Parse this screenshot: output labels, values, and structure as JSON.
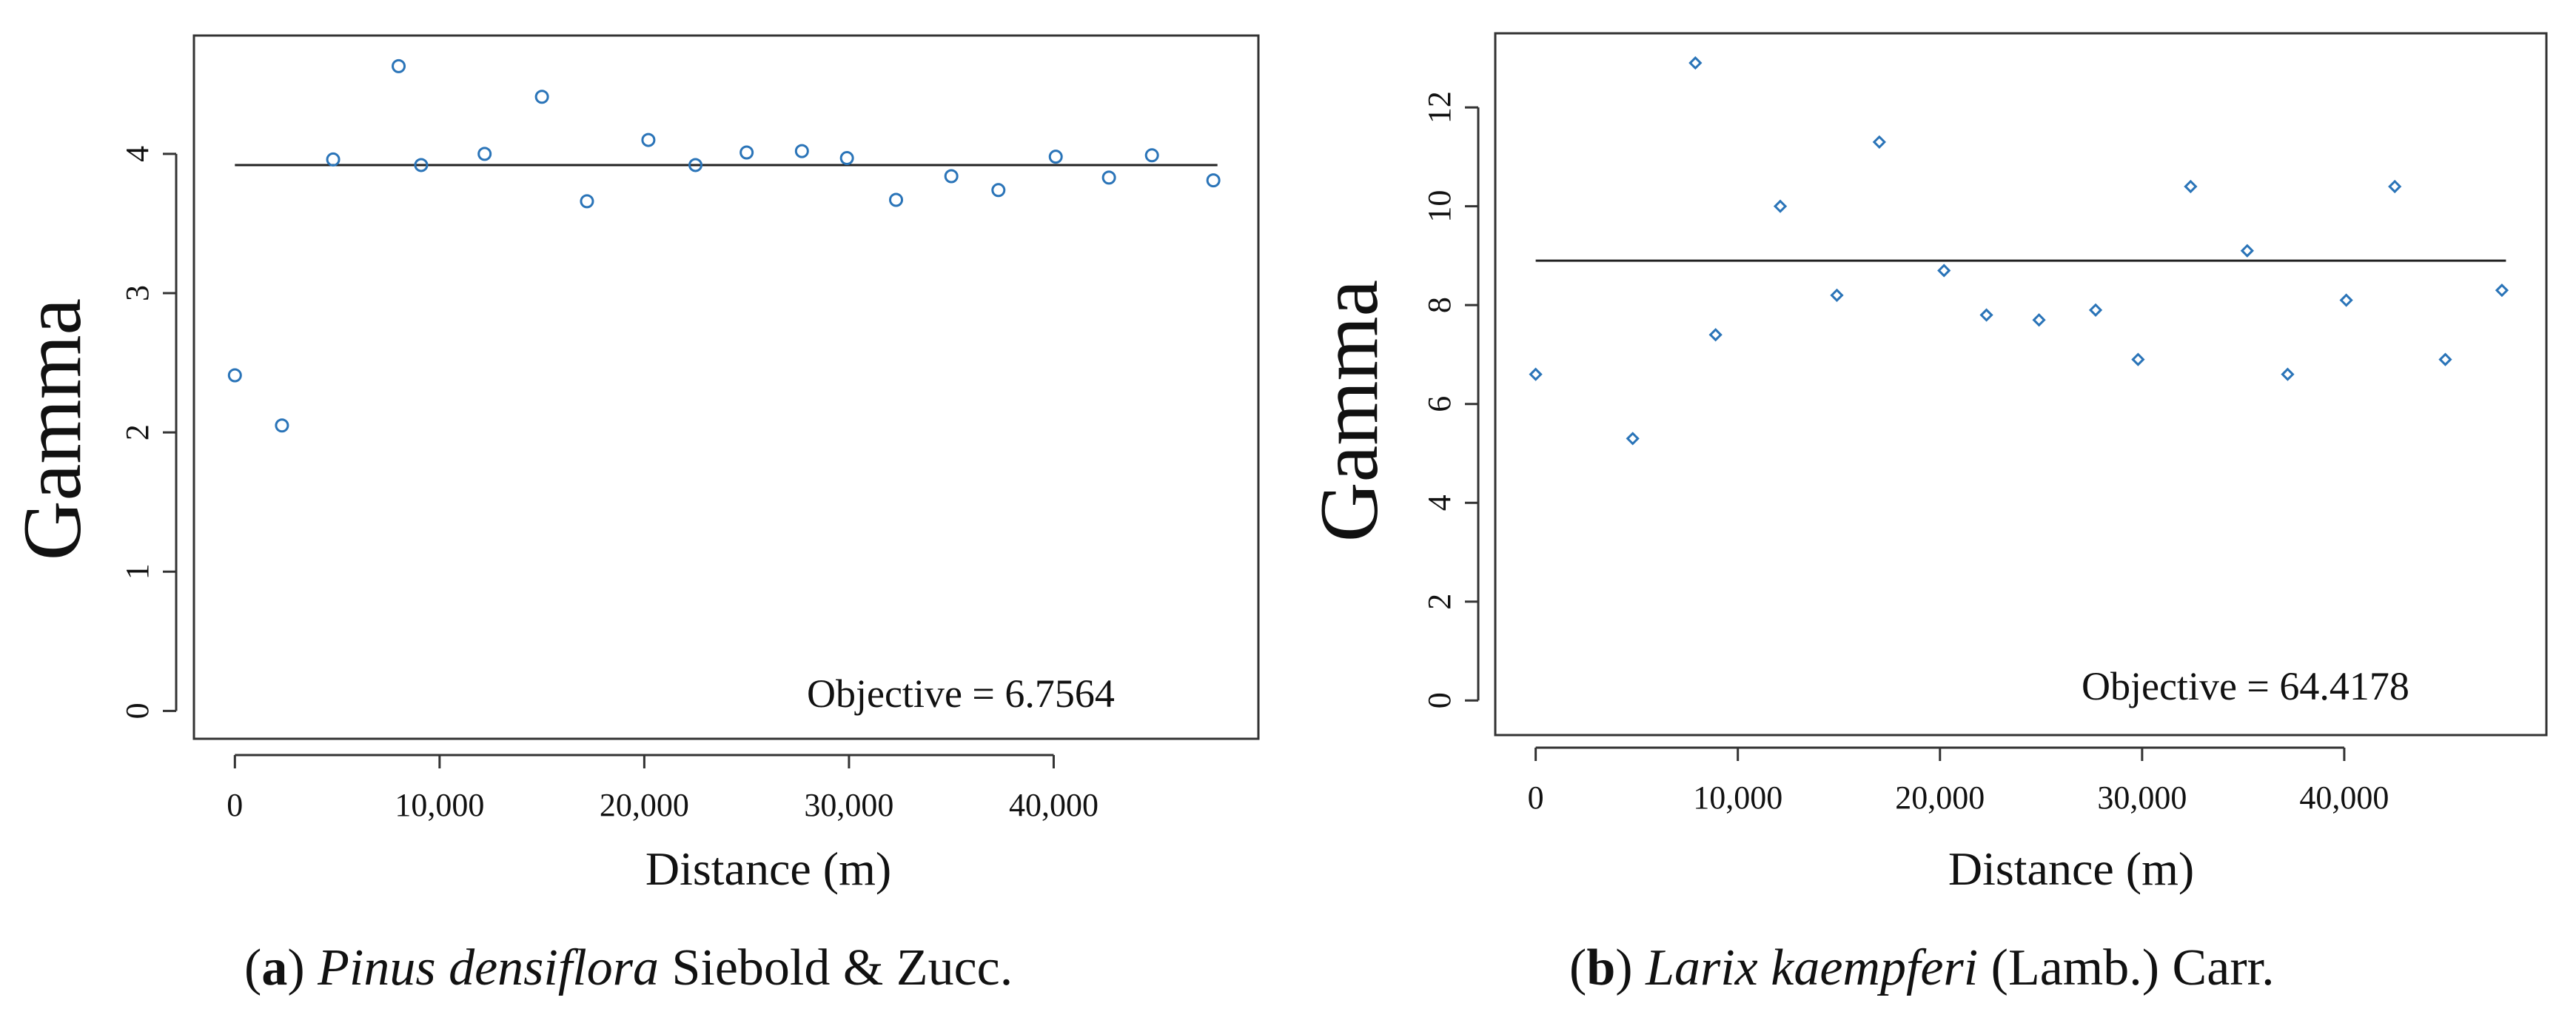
{
  "chart_data": [
    {
      "type": "scatter",
      "xlabel": "Distance (m)",
      "ylabel": "Gamma",
      "xlim": [
        -2000,
        50000
      ],
      "ylim": [
        -0.2,
        4.85
      ],
      "xticks": [
        0,
        10000,
        20000,
        30000,
        40000
      ],
      "xtick_labels": [
        "0",
        "10,000",
        "20,000",
        "30,000",
        "40,000"
      ],
      "yticks": [
        0,
        1,
        2,
        3,
        4
      ],
      "ytick_labels": [
        "0",
        "1",
        "2",
        "3",
        "4"
      ],
      "fit_line": {
        "x": [
          0,
          48000
        ],
        "y": [
          3.92,
          3.92
        ]
      },
      "annotation": "Objective = 6.7564",
      "series": [
        {
          "name": "Pinus densiflora",
          "x": [
            0,
            2300,
            4800,
            8000,
            9100,
            12200,
            15000,
            17200,
            20200,
            22500,
            25000,
            27700,
            29900,
            32300,
            35000,
            37300,
            40100,
            42700,
            44800,
            47800
          ],
          "y": [
            2.41,
            2.05,
            3.96,
            4.63,
            3.92,
            4.0,
            4.41,
            3.66,
            4.1,
            3.92,
            4.01,
            4.02,
            3.97,
            3.67,
            3.84,
            3.74,
            3.98,
            3.83,
            3.99,
            3.81
          ]
        }
      ],
      "caption": {
        "letter": "a",
        "species": "Pinus densiflora",
        "authority": "Siebold & Zucc."
      }
    },
    {
      "type": "scatter",
      "xlabel": "Distance (m)",
      "ylabel": "Gamma",
      "xlim": [
        -2000,
        50000
      ],
      "ylim": [
        -0.7,
        13.5
      ],
      "xticks": [
        0,
        10000,
        20000,
        30000,
        40000
      ],
      "xtick_labels": [
        "0",
        "10,000",
        "20,000",
        "30,000",
        "40,000"
      ],
      "yticks": [
        0,
        2,
        4,
        6,
        8,
        10,
        12
      ],
      "ytick_labels": [
        "0",
        "2",
        "4",
        "6",
        "8",
        "10",
        "12"
      ],
      "fit_line": {
        "x": [
          0,
          48000
        ],
        "y": [
          8.9,
          8.9
        ]
      },
      "annotation": "Objective = 64.4178",
      "series": [
        {
          "name": "Larix kaempferi",
          "x": [
            0,
            4800,
            7900,
            8900,
            12100,
            14900,
            17000,
            20200,
            22300,
            24900,
            27700,
            29800,
            32400,
            35200,
            37200,
            40100,
            42500,
            45000,
            47800
          ],
          "y": [
            6.6,
            5.3,
            12.9,
            7.4,
            10.0,
            8.2,
            11.3,
            8.7,
            7.8,
            7.7,
            7.9,
            6.9,
            10.4,
            9.1,
            6.6,
            8.1,
            10.4,
            6.9,
            8.3
          ]
        }
      ],
      "caption": {
        "letter": "b",
        "species": "Larix kaempferi",
        "authority": "(Lamb.) Carr."
      }
    }
  ]
}
